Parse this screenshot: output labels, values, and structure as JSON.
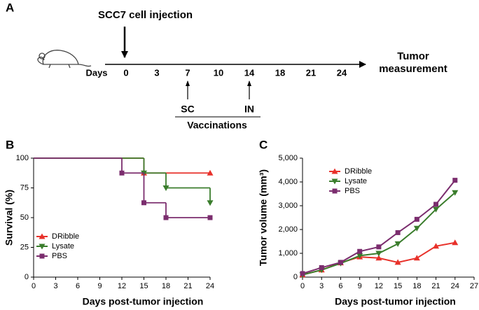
{
  "panel_a": {
    "label": "A",
    "injection": "SCC7 cell injection",
    "axis_label": "Days",
    "days": [
      0,
      3,
      7,
      10,
      14,
      18,
      21,
      24
    ],
    "end_label": "Tumor measurement",
    "vaccines": [
      {
        "label": "SC",
        "day": 7
      },
      {
        "label": "IN",
        "day": 14
      }
    ],
    "vaccinations": "Vaccinations"
  },
  "chart_data": [
    {
      "type": "step",
      "panel_label": "B",
      "xlabel": "Days post-tumor injection",
      "ylabel": "Survival (%)",
      "xlim": [
        0,
        24
      ],
      "xticks": [
        0,
        3,
        6,
        9,
        12,
        15,
        18,
        21,
        24
      ],
      "ylim": [
        0,
        100
      ],
      "yticks": [
        0,
        25,
        50,
        75,
        100
      ],
      "legend": "lower-left",
      "series": [
        {
          "name": "DRibble",
          "color": "#e8312a",
          "marker": "triangle-up",
          "x": [
            0,
            15,
            24
          ],
          "values": [
            100,
            87.5,
            87.5
          ]
        },
        {
          "name": "Lysate",
          "color": "#3a7d2c",
          "marker": "triangle-down",
          "x": [
            0,
            15,
            18,
            24
          ],
          "values": [
            100,
            87.5,
            75,
            62.5
          ]
        },
        {
          "name": "PBS",
          "color": "#7b2d6e",
          "marker": "square",
          "x": [
            0,
            12,
            15,
            18,
            24
          ],
          "values": [
            100,
            87.5,
            62.5,
            50,
            50
          ]
        }
      ]
    },
    {
      "type": "line",
      "panel_label": "C",
      "xlabel": "Days post-tumor injection",
      "ylabel": "Tumor volume (mm³)",
      "xlim": [
        0,
        27
      ],
      "xticks": [
        0,
        3,
        6,
        9,
        12,
        15,
        18,
        21,
        24,
        27
      ],
      "ylim": [
        0,
        5000
      ],
      "yticks": [
        0,
        {
          "value": 1000,
          "label": "1,000"
        },
        {
          "value": 2000,
          "label": "2,000"
        },
        {
          "value": 3000,
          "label": "3,000"
        },
        {
          "value": 4000,
          "label": "4,000"
        },
        {
          "value": 5000,
          "label": "5,000"
        }
      ],
      "legend": "upper-left",
      "x": [
        0,
        3,
        6,
        9,
        12,
        15,
        18,
        21,
        24
      ],
      "series": [
        {
          "name": "DRibble",
          "color": "#e8312a",
          "marker": "triangle-up",
          "values": [
            100,
            300,
            600,
            850,
            800,
            620,
            800,
            1300,
            1450
          ]
        },
        {
          "name": "Lysate",
          "color": "#3a7d2c",
          "marker": "triangle-down",
          "values": [
            100,
            300,
            580,
            900,
            1000,
            1400,
            2050,
            2850,
            3550
          ]
        },
        {
          "name": "PBS",
          "color": "#7b2d6e",
          "marker": "square",
          "values": [
            150,
            400,
            620,
            1080,
            1270,
            1870,
            2430,
            3060,
            4070
          ]
        }
      ]
    }
  ]
}
